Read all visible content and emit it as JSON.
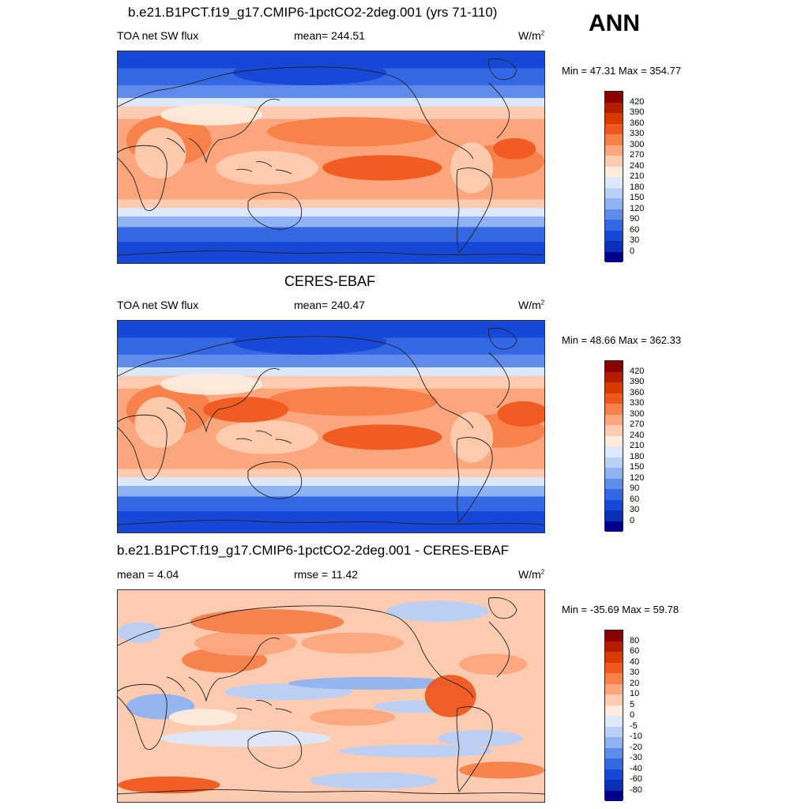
{
  "season": "ANN",
  "panels": [
    {
      "title": "b.e21.B1PCT.f19_g17.CMIP6-1pctCO2-2deg.001 (yrs 71-110)",
      "left_label": "TOA net SW flux",
      "center_label": "mean= 244.51",
      "units": "W/m",
      "units_sup": "2",
      "minmax": "Min =  47.31 Max = 354.77",
      "colorbar": {
        "labels": [
          "420",
          "390",
          "360",
          "330",
          "300",
          "270",
          "240",
          "210",
          "180",
          "150",
          "120",
          "90",
          "60",
          "30",
          "0"
        ],
        "colors": [
          "#8b0000",
          "#b51c00",
          "#d93a00",
          "#f0571f",
          "#f77f4a",
          "#fca67e",
          "#fdccb0",
          "#fdebdd",
          "#dde8fb",
          "#b9d0f7",
          "#8fb3f2",
          "#5f8cea",
          "#3367e3",
          "#1747d6",
          "#0b2fb6",
          "#00008b"
        ]
      }
    },
    {
      "title": "CERES-EBAF",
      "left_label": "TOA net SW flux",
      "center_label": "mean= 240.47",
      "units": "W/m",
      "units_sup": "2",
      "minmax": "Min =  48.66 Max = 362.33",
      "colorbar": {
        "labels": [
          "420",
          "390",
          "360",
          "330",
          "300",
          "270",
          "240",
          "210",
          "180",
          "150",
          "120",
          "90",
          "60",
          "30",
          "0"
        ],
        "colors": [
          "#8b0000",
          "#b51c00",
          "#d93a00",
          "#f0571f",
          "#f77f4a",
          "#fca67e",
          "#fdccb0",
          "#fdebdd",
          "#dde8fb",
          "#b9d0f7",
          "#8fb3f2",
          "#5f8cea",
          "#3367e3",
          "#1747d6",
          "#0b2fb6",
          "#00008b"
        ]
      }
    },
    {
      "title": "b.e21.B1PCT.f19_g17.CMIP6-1pctCO2-2deg.001 - CERES-EBAF",
      "left_label": "mean =   4.04",
      "center_label": "rmse =  11.42",
      "units": "W/m",
      "units_sup": "2",
      "minmax": "Min = -35.69 Max =  59.78",
      "colorbar": {
        "labels": [
          "80",
          "60",
          "40",
          "30",
          "20",
          "10",
          "5",
          "0",
          "-5",
          "-10",
          "-20",
          "-30",
          "-40",
          "-60",
          "-80"
        ],
        "colors": [
          "#8b0000",
          "#b51c00",
          "#d93a00",
          "#f0571f",
          "#f77f4a",
          "#fca67e",
          "#fdccb0",
          "#fdebdd",
          "#dde8fb",
          "#b9d0f7",
          "#8fb3f2",
          "#5f8cea",
          "#3367e3",
          "#1747d6",
          "#0b2fb6",
          "#00008b"
        ]
      }
    }
  ]
}
